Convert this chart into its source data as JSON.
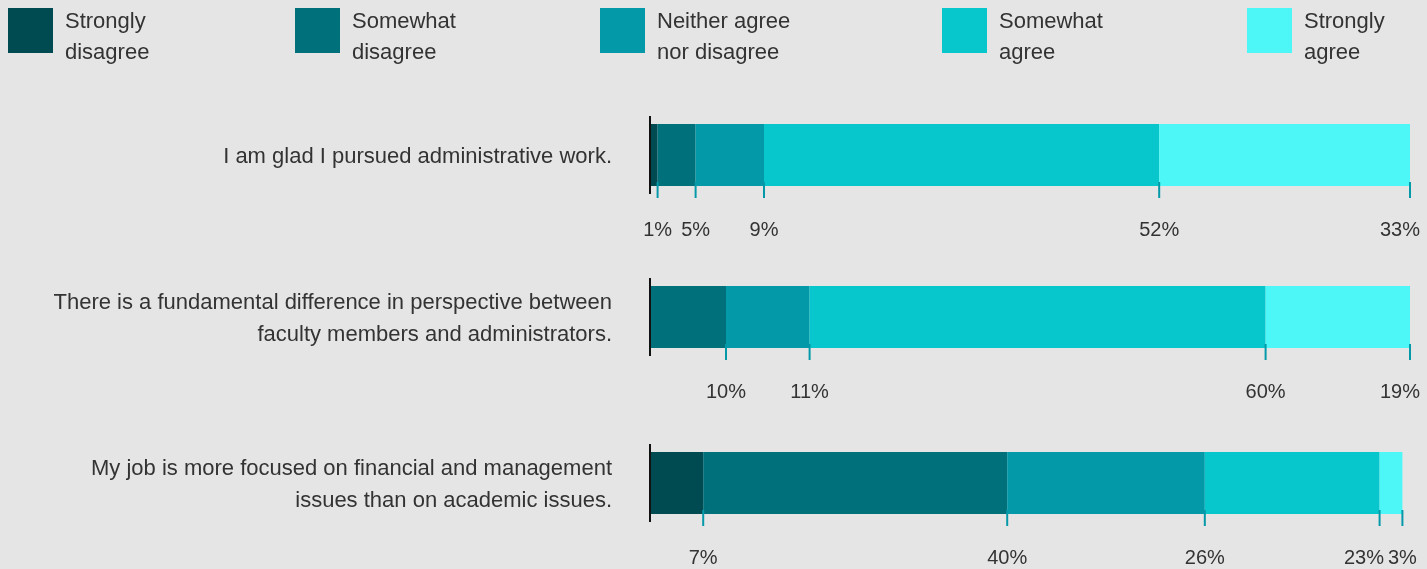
{
  "chart_data": {
    "type": "bar",
    "orientation": "horizontal",
    "stacked": true,
    "legend": "top",
    "xlim": [
      0,
      100
    ],
    "tick_labels": "y",
    "categories": [
      "I am glad I pursued administrative work.",
      "There is a fundamental difference in perspective between faculty members and administrators.",
      "My job is more focused on financial and management issues than on academic issues."
    ],
    "series": [
      {
        "name": "Strongly disagree",
        "color": "#004a52",
        "values": [
          1,
          0,
          7
        ],
        "value_labels": [
          "1%",
          null,
          "7%"
        ]
      },
      {
        "name": "Somewhat disagree",
        "color": "#00707a",
        "values": [
          5,
          10,
          40
        ],
        "value_labels": [
          "5%",
          "10%",
          "40%"
        ]
      },
      {
        "name": "Neither agree nor disagree",
        "color": "#0399a8",
        "values": [
          9,
          11,
          26
        ],
        "value_labels": [
          "9%",
          "11%",
          "26%"
        ]
      },
      {
        "name": "Somewhat agree",
        "color": "#07c7cc",
        "values": [
          52,
          60,
          23
        ],
        "value_labels": [
          "52%",
          "60%",
          "23%"
        ]
      },
      {
        "name": "Strongly agree",
        "color": "#4ef7f7",
        "values": [
          33,
          19,
          3
        ],
        "value_labels": [
          "33%",
          "19%",
          "3%"
        ]
      }
    ]
  }
}
